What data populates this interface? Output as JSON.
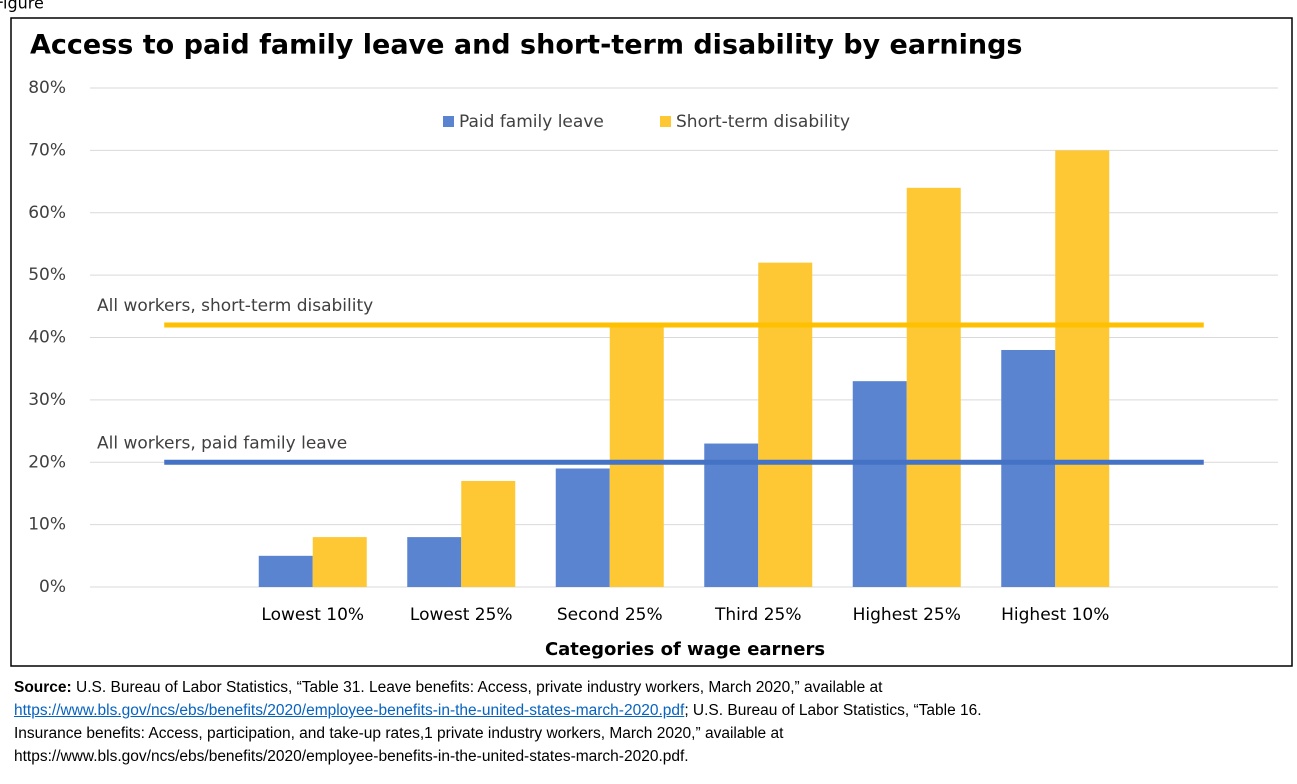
{
  "figure_label": "Figure",
  "chart_data": {
    "type": "bar",
    "title": "Access to paid family leave and short-term disability by earnings",
    "xlabel": "Categories of wage earners",
    "categories": [
      null,
      "Lowest 10%",
      "Lowest 25%",
      "Second 25%",
      "Third 25%",
      "Highest 25%",
      "Highest 10%",
      null
    ],
    "series": [
      {
        "name": "Paid family leave",
        "color": "#5b84d0",
        "values": [
          null,
          5,
          8,
          19,
          23,
          33,
          38,
          null
        ]
      },
      {
        "name": "Short-term disability",
        "color": "#fdc834",
        "values": [
          null,
          8,
          17,
          42,
          52,
          64,
          70,
          null
        ]
      }
    ],
    "reference_lines": [
      {
        "label": "All workers, short-term disability",
        "value": 42,
        "color": "#ffc000"
      },
      {
        "label": "All workers, paid family leave",
        "value": 20,
        "color": "#4472c4"
      }
    ],
    "ylim": [
      0,
      80
    ],
    "yticks": [
      {
        "value": 0,
        "label": "0%"
      },
      {
        "value": 10,
        "label": "10%"
      },
      {
        "value": 20,
        "label": "20%"
      },
      {
        "value": 30,
        "label": "30%"
      },
      {
        "value": 40,
        "label": "40%"
      },
      {
        "value": 50,
        "label": "50%"
      },
      {
        "value": 60,
        "label": "60%"
      },
      {
        "value": 70,
        "label": "70%"
      },
      {
        "value": 80,
        "label": "80%"
      }
    ],
    "grid": true,
    "legend": "top"
  },
  "source": {
    "label": "Source:",
    "text1": "U.S. Bureau of Labor Statistics, “Table 31. Leave benefits: Access, private industry workers, March 2020,” available at",
    "link": "https://www.bls.gov/ncs/ebs/benefits/2020/employee-benefits-in-the-united-states-march-2020.pdf",
    "text2": "; U.S. Bureau of Labor Statistics, “Table 16.",
    "text3": "Insurance benefits: Access, participation, and take-up rates,1 private industry workers, March 2020,” available at",
    "url": "https://www.bls.gov/ncs/ebs/benefits/2020/employee-benefits-in-the-united-states-march-2020.pdf."
  }
}
